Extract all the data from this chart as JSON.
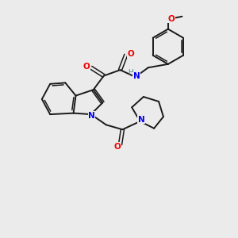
{
  "bg_color": "#ebebeb",
  "bond_color": "#1a1a1a",
  "N_color": "#0000ee",
  "O_color": "#ee0000",
  "H_color": "#4a8a8a",
  "figsize": [
    3.0,
    3.0
  ],
  "dpi": 100,
  "xlim": [
    0,
    10
  ],
  "ylim": [
    0,
    10
  ]
}
